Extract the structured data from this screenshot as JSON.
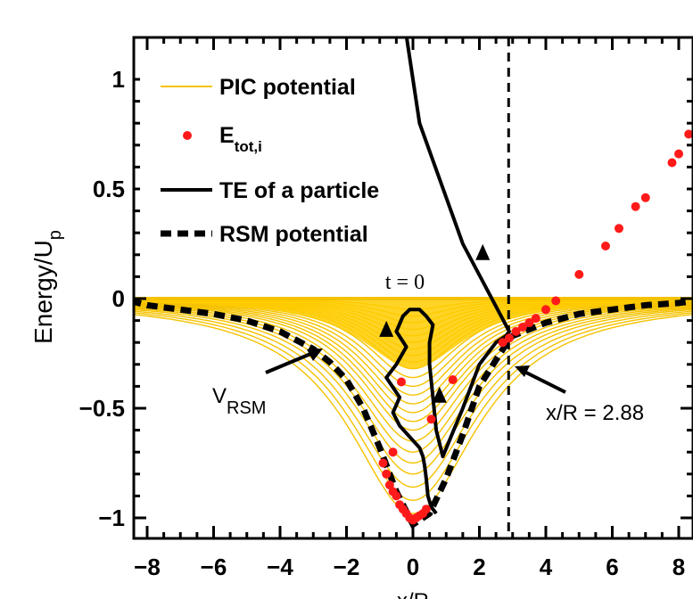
{
  "chart_data": {
    "type": "line",
    "xlabel": "x/R",
    "ylabel_main": "Energy/U",
    "ylabel_sub": "p",
    "xlim": [
      -8.5,
      8.5
    ],
    "ylim": [
      -1.1,
      1.1
    ],
    "x_ticks": [
      "−8",
      "−6",
      "−4",
      "−2",
      "0",
      "2",
      "4",
      "6",
      "8"
    ],
    "y_ticks": [
      "−1",
      "−0.5",
      "0",
      "0.5",
      "1"
    ],
    "legend": [
      {
        "label": "PIC potential",
        "style": "line",
        "color": "#f5c200"
      },
      {
        "label_main": "E",
        "label_sub": "tot,i",
        "style": "dot",
        "color": "#ff1a1a"
      },
      {
        "label": "TE of a particle",
        "style": "line",
        "color": "#000000"
      },
      {
        "label": "RSM potential",
        "style": "dashed",
        "color": "#000000"
      }
    ],
    "annotations": {
      "t0": "t = 0",
      "vrsm_main": "V",
      "vrsm_sub": "RSM",
      "xr": "x/R = 2.88"
    },
    "vertical_line_x": 2.88,
    "rsm_potential": {
      "x": [
        -8.5,
        -8,
        -7,
        -6,
        -5,
        -4,
        -3,
        -2.5,
        -2,
        -1.5,
        -1,
        -0.5,
        0,
        0.5,
        1,
        1.5,
        2,
        2.5,
        2.88,
        3,
        4,
        5,
        6,
        7,
        8,
        8.5
      ],
      "y": [
        -0.01,
        -0.03,
        -0.05,
        -0.07,
        -0.1,
        -0.15,
        -0.23,
        -0.29,
        -0.37,
        -0.5,
        -0.68,
        -0.88,
        -1.03,
        -0.98,
        -0.82,
        -0.62,
        -0.4,
        -0.28,
        -0.19,
        -0.17,
        -0.11,
        -0.07,
        -0.05,
        -0.03,
        -0.02,
        -0.01
      ]
    },
    "pic_potential_depths": [
      -0.05,
      -0.08,
      -0.11,
      -0.14,
      -0.17,
      -0.2,
      -0.23,
      -0.26,
      -0.29,
      -0.32,
      -0.36,
      -0.4,
      -0.44,
      -0.48,
      -0.52,
      -0.56,
      -0.6,
      -0.65,
      -0.7,
      -0.75,
      -0.8,
      -0.86,
      -0.92,
      -0.98
    ],
    "particle_te": {
      "x": [
        0.7,
        0.55,
        0.45,
        0.4,
        0.35,
        0.3,
        0.2,
        -0.4,
        -0.6,
        -0.4,
        -0.8,
        -0.5,
        -0.2,
        -0.5,
        -0.3,
        -0.1,
        0.2,
        0.4,
        0.6,
        0.5,
        0.5,
        0.6,
        0.7,
        0.9,
        1.5,
        2.0,
        2.5,
        2.8,
        2.9,
        1.5,
        0.2,
        -0.2
      ],
      "y": [
        -0.98,
        -0.95,
        -0.9,
        -0.82,
        -0.76,
        -0.72,
        -0.68,
        -0.58,
        -0.52,
        -0.45,
        -0.36,
        -0.3,
        -0.22,
        -0.15,
        -0.08,
        -0.05,
        -0.05,
        -0.08,
        -0.12,
        -0.2,
        -0.3,
        -0.45,
        -0.6,
        -0.72,
        -0.5,
        -0.3,
        -0.2,
        -0.17,
        -0.15,
        0.25,
        0.8,
        1.2
      ]
    },
    "particle_arrows": [
      {
        "x": 2.1,
        "y": 0.2
      },
      {
        "x": -0.8,
        "y": -0.15
      },
      {
        "x": 0.8,
        "y": -0.45
      }
    ],
    "etot_points": {
      "x": [
        -0.9,
        -0.8,
        -0.7,
        -0.6,
        -0.5,
        -0.4,
        -0.3,
        -0.2,
        -0.1,
        0.0,
        0.1,
        0.2,
        0.3,
        0.4,
        -0.6,
        -0.35,
        0.55,
        1.2,
        2.7,
        2.9,
        3.1,
        3.3,
        3.5,
        3.7,
        4.0,
        4.3,
        5.0,
        5.8,
        6.2,
        6.7,
        7.0,
        7.8,
        8.0,
        8.3
      ],
      "y": [
        -0.75,
        -0.8,
        -0.85,
        -0.88,
        -0.9,
        -0.94,
        -0.96,
        -0.98,
        -1.0,
        -1.01,
        -1.0,
        -0.99,
        -0.98,
        -0.96,
        -0.7,
        -0.38,
        -0.55,
        -0.37,
        -0.2,
        -0.18,
        -0.15,
        -0.13,
        -0.11,
        -0.09,
        -0.05,
        -0.01,
        0.11,
        0.24,
        0.32,
        0.42,
        0.46,
        0.62,
        0.66,
        0.75
      ]
    }
  }
}
